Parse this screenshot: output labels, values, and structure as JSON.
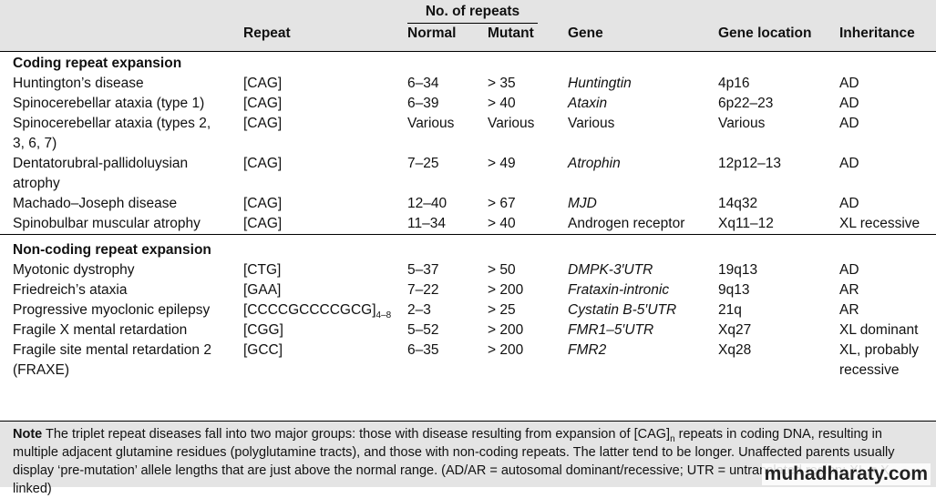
{
  "table": {
    "group_header": "No. of repeats",
    "columns": [
      "Repeat",
      "Normal",
      "Mutant",
      "Gene",
      "Gene location",
      "Inheritance"
    ],
    "sections": [
      {
        "title": "Coding repeat expansion",
        "rows": [
          {
            "disease": "Huntington’s disease",
            "repeat": "[CAG]",
            "normal": "6–34",
            "mutant": "> 35",
            "gene": "Huntingtin",
            "gene_italic": true,
            "location": "4p16",
            "inheritance": "AD"
          },
          {
            "disease": "Spinocerebellar ataxia (type 1)",
            "repeat": "[CAG]",
            "normal": "6–39",
            "mutant": "> 40",
            "gene": "Ataxin",
            "gene_italic": true,
            "location": "6p22–23",
            "inheritance": "AD"
          },
          {
            "disease": "Spinocerebellar ataxia (types 2, 3, 6, 7)",
            "repeat": "[CAG]",
            "normal": "Various",
            "mutant": "Various",
            "gene": "Various",
            "gene_italic": false,
            "location": "Various",
            "inheritance": "AD"
          },
          {
            "disease": "Dentatorubral-pallidoluysian atrophy",
            "repeat": "[CAG]",
            "normal": "7–25",
            "mutant": "> 49",
            "gene": "Atrophin",
            "gene_italic": true,
            "location": "12p12–13",
            "inheritance": "AD"
          },
          {
            "disease": "Machado–Joseph disease",
            "repeat": "[CAG]",
            "normal": "12–40",
            "mutant": "> 67",
            "gene": "MJD",
            "gene_italic": true,
            "location": "14q32",
            "inheritance": "AD"
          },
          {
            "disease": "Spinobulbar muscular atrophy",
            "repeat": "[CAG]",
            "normal": "11–34",
            "mutant": "> 40",
            "gene": "Androgen receptor",
            "gene_italic": false,
            "location": "Xq11–12",
            "inheritance": "XL recessive"
          }
        ]
      },
      {
        "title": "Non-coding repeat expansion",
        "rows": [
          {
            "disease": "Myotonic dystrophy",
            "repeat": "[CTG]",
            "normal": "5–37",
            "mutant": "> 50",
            "gene": "DMPK-3′UTR",
            "gene_italic": true,
            "location": "19q13",
            "inheritance": "AD"
          },
          {
            "disease": "Friedreich’s ataxia",
            "repeat": "[GAA]",
            "normal": "7–22",
            "mutant": "> 200",
            "gene": "Frataxin-intronic",
            "gene_italic": true,
            "location": "9q13",
            "inheritance": "AR"
          },
          {
            "disease": "Progressive myoclonic epilepsy",
            "repeat": "[CCCCGCCCCGCG]",
            "repeat_sub": "4–8",
            "normal": "2–3",
            "mutant": "> 25",
            "gene": "Cystatin B-5′UTR",
            "gene_italic": true,
            "location": "21q",
            "inheritance": "AR"
          },
          {
            "disease": "Fragile X mental retardation",
            "repeat": "[CGG]",
            "normal": "5–52",
            "mutant": "> 200",
            "gene": "FMR1–5′UTR",
            "gene_italic": true,
            "location": "Xq27",
            "inheritance": "XL dominant"
          },
          {
            "disease": "Fragile site mental retardation 2 (FRAXE)",
            "repeat": "[GCC]",
            "normal": "6–35",
            "mutant": "> 200",
            "gene": "FMR2",
            "gene_italic": true,
            "location": "Xq28",
            "inheritance": "XL, probably recessive"
          }
        ]
      }
    ],
    "note": {
      "label": "Note",
      "text_1": " The triplet repeat diseases fall into two major groups: those with disease resulting from expansion of [CAG]",
      "sub": "n",
      "text_2": " repeats in coding DNA, resulting in multiple adjacent glutamine residues (polyglutamine tracts), and those with non-coding repeats. The latter tend to be longer. Unaffected parents usually display ‘pre-mutation’ allele lengths that are just above the normal range. (AD/AR = autosomal dominant/recessive; UTR = untranslated region; XL = X-linked)"
    },
    "watermark": "muhadharaty.com"
  }
}
